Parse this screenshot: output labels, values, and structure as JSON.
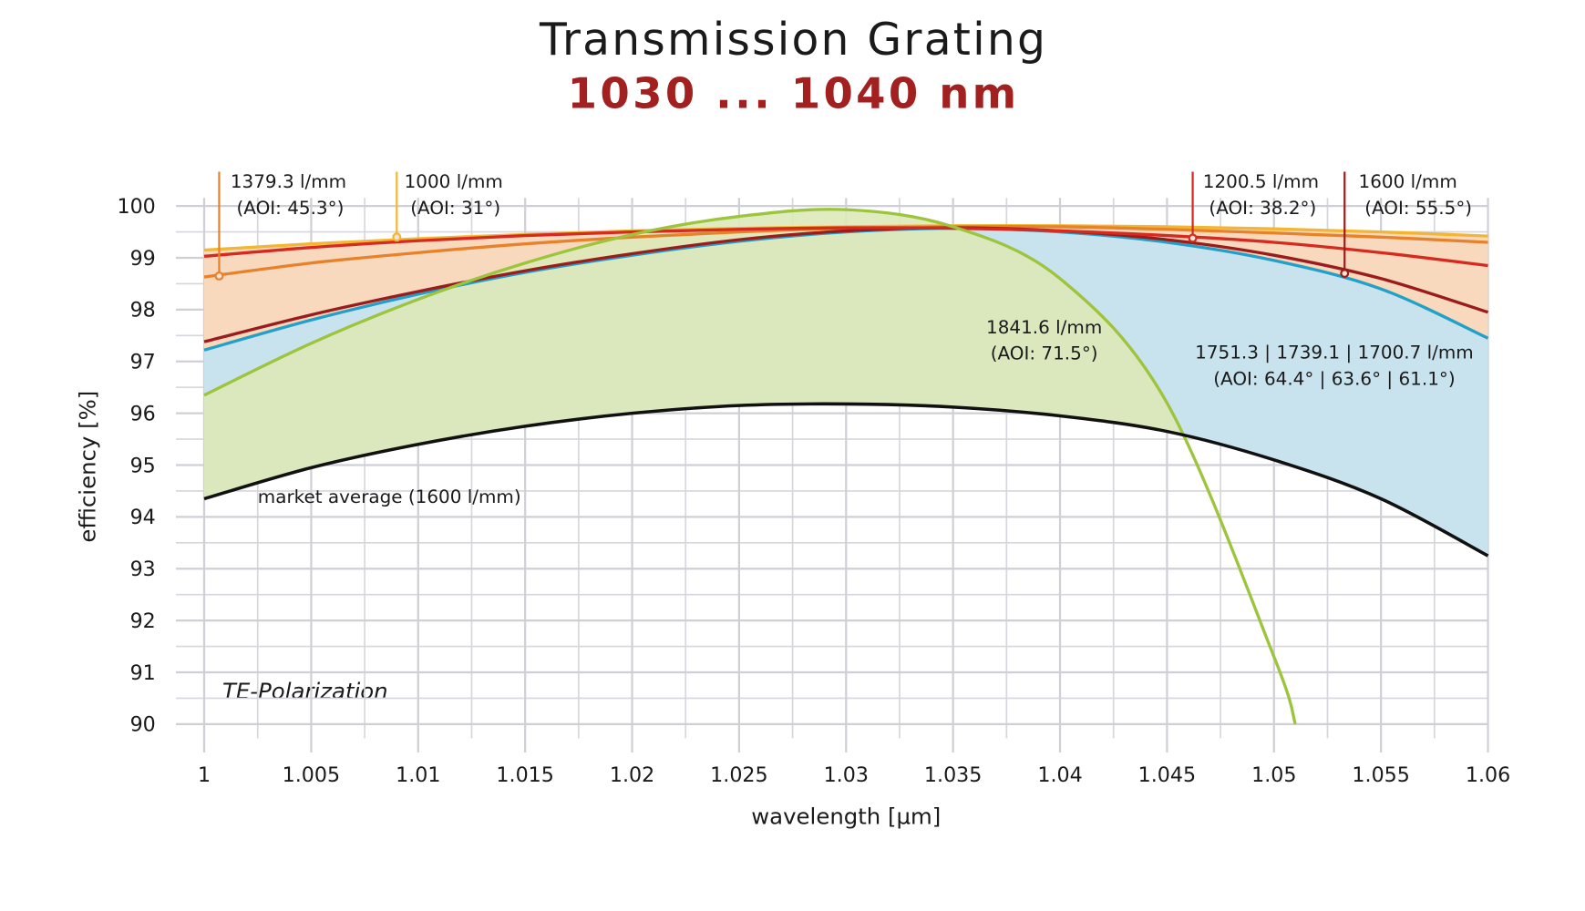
{
  "chart_data": {
    "type": "line",
    "title": "Transmission Grating",
    "subtitle": "1030 ... 1040 nm",
    "xlabel": "wavelength [µm]",
    "ylabel": "efficiency [%]",
    "note": "TE-Polarization",
    "xlim": [
      1,
      1.06
    ],
    "ylim": [
      90,
      100
    ],
    "xticks": [
      1,
      1.005,
      1.01,
      1.015,
      1.02,
      1.025,
      1.03,
      1.035,
      1.04,
      1.045,
      1.05,
      1.055,
      1.06
    ],
    "yticks": [
      90,
      91,
      92,
      93,
      94,
      95,
      96,
      97,
      98,
      99,
      100
    ],
    "grid": true,
    "x": [
      1,
      1.005,
      1.01,
      1.015,
      1.02,
      1.025,
      1.03,
      1.035,
      1.04,
      1.045,
      1.05,
      1.055,
      1.06
    ],
    "series": [
      {
        "name": "1000 l/mm",
        "color": "#f2b632",
        "values": [
          99.15,
          99.27,
          99.37,
          99.45,
          99.52,
          99.57,
          99.6,
          99.62,
          99.62,
          99.6,
          99.56,
          99.5,
          99.42
        ]
      },
      {
        "name": "1379.3 l/mm",
        "color": "#e8822a",
        "values": [
          98.63,
          98.9,
          99.1,
          99.27,
          99.4,
          99.5,
          99.57,
          99.6,
          99.6,
          99.55,
          99.48,
          99.4,
          99.3
        ]
      },
      {
        "name": "1200.5 l/mm",
        "color": "#d62a20",
        "values": [
          99.03,
          99.2,
          99.33,
          99.43,
          99.5,
          99.55,
          99.58,
          99.57,
          99.52,
          99.43,
          99.3,
          99.1,
          98.85
        ]
      },
      {
        "name": "1600 l/mm",
        "color": "#9b1c1c",
        "values": [
          97.38,
          97.9,
          98.35,
          98.75,
          99.08,
          99.35,
          99.52,
          99.58,
          99.52,
          99.35,
          99.05,
          98.6,
          97.95
        ]
      },
      {
        "name": "1751.3 | 1739.1 | 1700.7 l/mm",
        "color": "#22a0c8",
        "values": [
          97.22,
          97.8,
          98.3,
          98.72,
          99.05,
          99.32,
          99.5,
          99.57,
          99.5,
          99.3,
          98.95,
          98.4,
          97.45
        ]
      },
      {
        "name": "1841.6 l/mm",
        "color": "#9cc43c",
        "x": [
          1,
          1.005,
          1.01,
          1.015,
          1.02,
          1.025,
          1.03,
          1.035,
          1.04,
          1.045,
          1.05,
          1.051
        ],
        "values": [
          96.35,
          97.35,
          98.2,
          98.9,
          99.45,
          99.8,
          99.93,
          99.6,
          98.6,
          96.2,
          91.3,
          90
        ]
      },
      {
        "name": "market average (1600 l/mm)",
        "color": "#111111",
        "values": [
          94.35,
          94.95,
          95.4,
          95.75,
          96.0,
          96.15,
          96.18,
          96.12,
          95.95,
          95.65,
          95.1,
          94.35,
          93.25
        ]
      }
    ],
    "annotations": [
      {
        "lines": [
          "1379.3 l/mm",
          "(AOI: 45.3°)"
        ],
        "x": 1.0007,
        "y": 98.65,
        "color": "#e8822a"
      },
      {
        "lines": [
          "1000 l/mm",
          "(AOI: 31°)"
        ],
        "x": 1.009,
        "y": 99.4,
        "color": "#f2b632"
      },
      {
        "lines": [
          "1200.5 l/mm",
          "(AOI: 38.2°)"
        ],
        "x": 1.0462,
        "y": 99.38,
        "color": "#d62a20"
      },
      {
        "lines": [
          "1600 l/mm",
          "(AOI: 55.5°)"
        ],
        "x": 1.0533,
        "y": 98.7,
        "color": "#9b1c1c"
      },
      {
        "lines": [
          "1841.6 l/mm",
          "(AOI: 71.5°)"
        ]
      },
      {
        "lines": [
          "1751.3 | 1739.1 | 1700.7 l/mm",
          "(AOI: 64.4° | 63.6° | 61.1°)"
        ]
      }
    ],
    "fills": {
      "orange": "#f9d9bd",
      "blue": "#c8e2ee",
      "green": "#dde9b8"
    }
  }
}
